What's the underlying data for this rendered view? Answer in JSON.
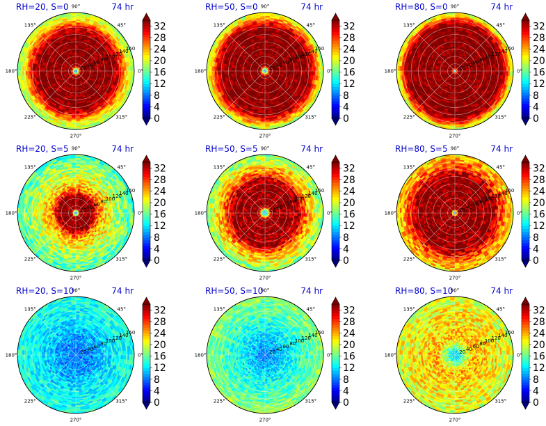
{
  "figure": {
    "width": 785,
    "height": 612
  },
  "colors": {
    "title": "#0000cc",
    "jet": [
      "#00007f",
      "#0000ff",
      "#0080ff",
      "#00ffff",
      "#80ff80",
      "#ffff00",
      "#ff8000",
      "#ff0000",
      "#7f0000"
    ]
  },
  "chart_data": [
    {
      "type": "heatmap",
      "projection": "polar",
      "title_left": "RH=20, S=0",
      "title_right": "74 hr",
      "angle_ticks": [
        "0°",
        "45°",
        "90°",
        "135°",
        "180°",
        "225°",
        "270°",
        "315°"
      ],
      "radial_ticks": [
        20,
        40,
        60,
        80,
        100,
        120,
        140,
        160
      ],
      "radial_range": [
        0,
        160
      ],
      "colorbar": {
        "ticks": [
          0,
          4,
          8,
          12,
          16,
          20,
          24,
          28,
          32
        ],
        "range": [
          0,
          34
        ],
        "extend": "both"
      },
      "field": {
        "center_value": 4,
        "rings": [
          [
            0,
            4
          ],
          [
            5,
            14
          ],
          [
            14,
            34
          ],
          [
            100,
            34
          ],
          [
            120,
            30
          ],
          [
            140,
            22
          ],
          [
            160,
            18
          ]
        ],
        "noise": 3
      }
    },
    {
      "type": "heatmap",
      "projection": "polar",
      "title_left": "RH=50, S=0",
      "title_right": "74 hr",
      "angle_ticks": [
        "0°",
        "45°",
        "90°",
        "135°",
        "180°",
        "225°",
        "270°",
        "315°"
      ],
      "radial_ticks": [
        20,
        40,
        60,
        80,
        100,
        120,
        140,
        160
      ],
      "radial_range": [
        0,
        160
      ],
      "colorbar": {
        "ticks": [
          0,
          4,
          8,
          12,
          16,
          20,
          24,
          28,
          32
        ],
        "range": [
          0,
          34
        ],
        "extend": "both"
      },
      "field": {
        "center_value": 4,
        "rings": [
          [
            0,
            4
          ],
          [
            5,
            14
          ],
          [
            14,
            34
          ],
          [
            115,
            34
          ],
          [
            135,
            29
          ],
          [
            150,
            22
          ],
          [
            160,
            18
          ]
        ],
        "noise": 3
      }
    },
    {
      "type": "heatmap",
      "projection": "polar",
      "title_left": "RH=80, S=0",
      "title_right": "74 hr",
      "angle_ticks": [
        "0°",
        "45°",
        "90°",
        "135°",
        "180°",
        "225°",
        "270°",
        "315°"
      ],
      "radial_ticks": [
        20,
        40,
        60,
        80,
        100,
        120,
        140,
        160
      ],
      "radial_range": [
        0,
        160
      ],
      "colorbar": {
        "ticks": [
          0,
          4,
          8,
          12,
          16,
          20,
          24,
          28,
          32
        ],
        "range": [
          0,
          34
        ],
        "extend": "both"
      },
      "field": {
        "center_value": 6,
        "rings": [
          [
            0,
            6
          ],
          [
            3,
            14
          ],
          [
            8,
            34
          ],
          [
            125,
            34
          ],
          [
            142,
            29
          ],
          [
            152,
            22
          ],
          [
            160,
            20
          ]
        ],
        "noise": 3
      }
    },
    {
      "type": "heatmap",
      "projection": "polar",
      "title_left": "RH=20, S=5",
      "title_right": "74 hr",
      "angle_ticks": [
        "0°",
        "45°",
        "90°",
        "135°",
        "180°",
        "225°",
        "270°",
        "315°"
      ],
      "radial_ticks": [
        20,
        40,
        60,
        80,
        100,
        120,
        140,
        160
      ],
      "radial_range": [
        0,
        160
      ],
      "colorbar": {
        "ticks": [
          0,
          4,
          8,
          12,
          16,
          20,
          24,
          28,
          32
        ],
        "range": [
          0,
          34
        ],
        "extend": "both"
      },
      "field": {
        "center_value": 4,
        "rings": [
          [
            0,
            4
          ],
          [
            5,
            14
          ],
          [
            12,
            34
          ],
          [
            45,
            34
          ],
          [
            70,
            24
          ],
          [
            110,
            19
          ],
          [
            160,
            15
          ]
        ],
        "noise": 4
      }
    },
    {
      "type": "heatmap",
      "projection": "polar",
      "title_left": "RH=50, S=5",
      "title_right": "74 hr",
      "angle_ticks": [
        "0°",
        "45°",
        "90°",
        "135°",
        "180°",
        "225°",
        "270°",
        "315°"
      ],
      "radial_ticks": [
        20,
        40,
        60,
        80,
        100,
        120,
        140,
        160
      ],
      "radial_range": [
        0,
        160
      ],
      "colorbar": {
        "ticks": [
          0,
          4,
          8,
          12,
          16,
          20,
          24,
          28,
          32
        ],
        "range": [
          0,
          34
        ],
        "extend": "both"
      },
      "field": {
        "center_value": 8,
        "rings": [
          [
            0,
            8
          ],
          [
            8,
            16
          ],
          [
            18,
            34
          ],
          [
            90,
            33
          ],
          [
            115,
            25
          ],
          [
            140,
            20
          ],
          [
            160,
            17
          ]
        ],
        "noise": 4
      }
    },
    {
      "type": "heatmap",
      "projection": "polar",
      "title_left": "RH=80, S=5",
      "title_right": "74 hr",
      "angle_ticks": [
        "0°",
        "45°",
        "90°",
        "135°",
        "180°",
        "225°",
        "270°",
        "315°"
      ],
      "radial_ticks": [
        20,
        40,
        60,
        80,
        100,
        120,
        140,
        160
      ],
      "radial_range": [
        0,
        160
      ],
      "colorbar": {
        "ticks": [
          0,
          4,
          8,
          12,
          16,
          20,
          24,
          28,
          32
        ],
        "range": [
          0,
          34
        ],
        "extend": "both"
      },
      "field": {
        "center_value": 6,
        "rings": [
          [
            0,
            6
          ],
          [
            4,
            14
          ],
          [
            10,
            34
          ],
          [
            100,
            34
          ],
          [
            125,
            28
          ],
          [
            145,
            24
          ],
          [
            160,
            22
          ]
        ],
        "noise": 4
      }
    },
    {
      "type": "heatmap",
      "projection": "polar",
      "title_left": "RH=20, S=10",
      "title_right": "74 hr",
      "angle_ticks": [
        "0°",
        "45°",
        "90°",
        "135°",
        "180°",
        "225°",
        "270°",
        "315°"
      ],
      "radial_ticks": [
        20,
        40,
        60,
        80,
        100,
        120,
        140,
        160
      ],
      "radial_range": [
        0,
        160
      ],
      "colorbar": {
        "ticks": [
          0,
          4,
          8,
          12,
          16,
          20,
          24,
          28,
          32
        ],
        "range": [
          0,
          34
        ],
        "extend": "both"
      },
      "field": {
        "center_value": 8,
        "rings": [
          [
            0,
            8
          ],
          [
            40,
            9
          ],
          [
            90,
            12
          ],
          [
            160,
            14
          ]
        ],
        "noise": 3
      }
    },
    {
      "type": "heatmap",
      "projection": "polar",
      "title_left": "RH=50, S=10",
      "title_right": "74 hr",
      "angle_ticks": [
        "0°",
        "45°",
        "90°",
        "135°",
        "180°",
        "225°",
        "270°",
        "315°"
      ],
      "radial_ticks": [
        20,
        40,
        60,
        80,
        100,
        120,
        140,
        160
      ],
      "radial_range": [
        0,
        160
      ],
      "colorbar": {
        "ticks": [
          0,
          4,
          8,
          12,
          16,
          20,
          24,
          28,
          32
        ],
        "range": [
          0,
          34
        ],
        "extend": "both"
      },
      "field": {
        "center_value": 8,
        "rings": [
          [
            0,
            8
          ],
          [
            40,
            11
          ],
          [
            90,
            14
          ],
          [
            130,
            16
          ],
          [
            160,
            18
          ]
        ],
        "noise": 3
      }
    },
    {
      "type": "heatmap",
      "projection": "polar",
      "title_left": "RH=80, S=10",
      "title_right": "74 hr",
      "angle_ticks": [
        "0°",
        "45°",
        "90°",
        "135°",
        "180°",
        "225°",
        "270°",
        "315°"
      ],
      "radial_ticks": [
        20,
        40,
        60,
        80,
        100,
        120,
        140,
        160
      ],
      "radial_range": [
        0,
        160
      ],
      "colorbar": {
        "ticks": [
          0,
          4,
          8,
          12,
          16,
          20,
          24,
          28,
          32
        ],
        "range": [
          0,
          34
        ],
        "extend": "both"
      },
      "field": {
        "center_value": 10,
        "rings": [
          [
            0,
            10
          ],
          [
            20,
            16
          ],
          [
            50,
            24
          ],
          [
            90,
            22
          ],
          [
            130,
            21
          ],
          [
            160,
            20
          ]
        ],
        "noise": 4
      }
    }
  ]
}
